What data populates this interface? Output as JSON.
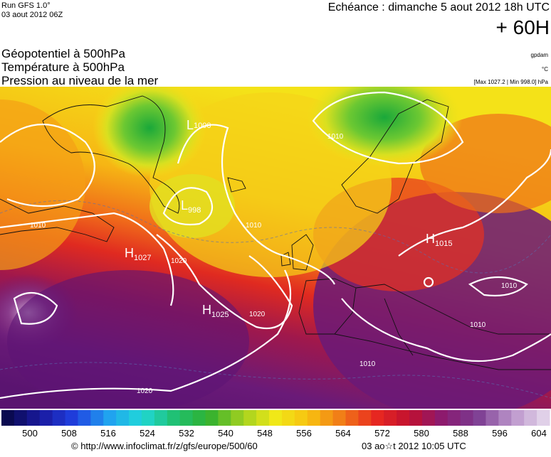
{
  "header": {
    "run": "Run GFS 1.0°",
    "run_date": "03 aout 2012 06Z",
    "valid": "Echéance : dimanche 5 aout 2012 18h UTC",
    "lead": "+ 60H"
  },
  "fields": [
    "Géopotentiel à 500hPa",
    "Température à 500hPa",
    "Pression au niveau de la mer"
  ],
  "units": {
    "geopotential": "gpdam",
    "temperature": "°C",
    "pressure": "[Max 1027.2 | Min 998.0] hPa"
  },
  "centers": [
    {
      "symbol": "H",
      "value": 1027
    },
    {
      "symbol": "H",
      "value": 1025
    },
    {
      "symbol": "H",
      "value": 1015
    },
    {
      "symbol": "L",
      "value": 998
    },
    {
      "symbol": "L",
      "value": 1000
    }
  ],
  "isobar_labels": [
    1010,
    1010,
    1010,
    1020,
    1020,
    1010,
    1010,
    1010,
    1020
  ],
  "legend": {
    "labels": [
      500,
      508,
      516,
      524,
      532,
      540,
      548,
      556,
      564,
      572,
      580,
      588,
      596,
      604
    ]
  },
  "footer": {
    "source": "© http://www.infoclimat.fr/z/gfs/europe/500/60",
    "generated": "03 ao☆t 2012 10:05 UTC"
  }
}
